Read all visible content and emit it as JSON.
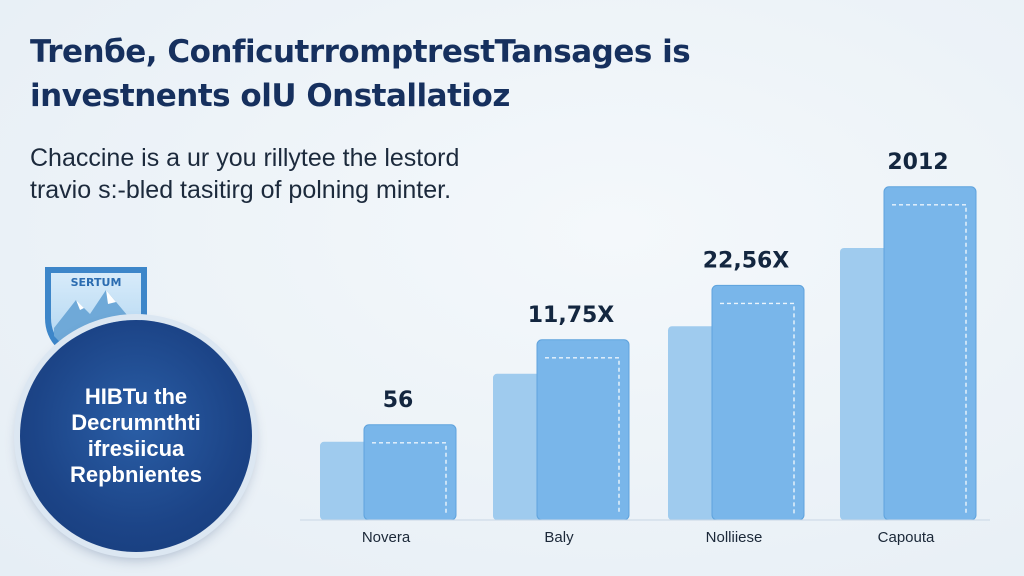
{
  "header": {
    "title_line1": "Trenбe, Conficutrromptrest​Tansages is",
    "title_line2": "investnents olU Onstallatioz"
  },
  "intro": {
    "line1": "Chaccine is a ur you rillytee the lestord",
    "line2": "travio s:-bled tasitirg of polning minter."
  },
  "shield": {
    "label": "SERTUM"
  },
  "badge": {
    "line1": "HIBTu the",
    "line2": "Decrumnthti",
    "line3": "ifresiicua",
    "line4": "Repbnientes"
  },
  "colors": {
    "bar_light": "#9fcbee",
    "bar_main": "#79b6ea",
    "title": "#16305e",
    "badge": "#1c4487"
  },
  "chart_data": {
    "type": "bar",
    "categories": [
      "Novera",
      "Baly",
      "Nolliiese",
      "Capouta"
    ],
    "series": [
      {
        "values": [
          23,
          43,
          57,
          80
        ]
      },
      {
        "values": [
          28,
          53,
          69,
          98
        ]
      }
    ],
    "data_labels": [
      "56",
      "11,75X",
      "22,56X",
      "2012"
    ],
    "ylim": [
      0,
      100
    ],
    "grid": false,
    "legend": "none"
  }
}
